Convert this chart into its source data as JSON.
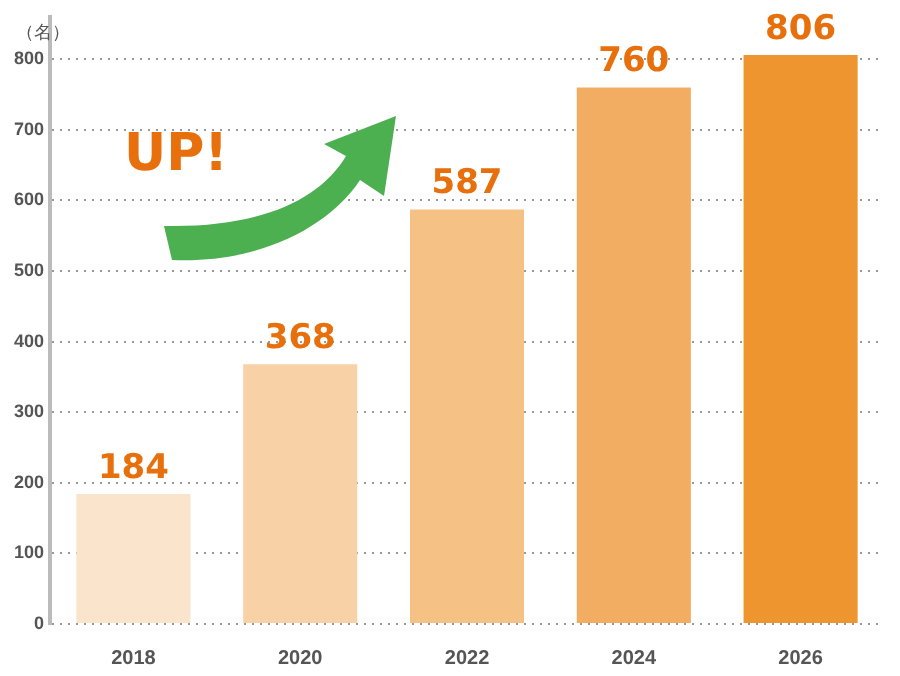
{
  "chart_data": {
    "type": "bar",
    "ylabel": "（名）",
    "categories": [
      "2018",
      "2020",
      "2022",
      "2024",
      "2026"
    ],
    "values": [
      184,
      368,
      587,
      760,
      806
    ],
    "colors": [
      "#fbe4cc",
      "#f8d2a6",
      "#f6c184",
      "#f3ad63",
      "#ef952f"
    ],
    "ylim": [
      0,
      860
    ],
    "yticks": [
      0,
      100,
      200,
      300,
      400,
      500,
      600,
      700,
      800
    ],
    "grid": "y",
    "data_labels": true,
    "annotations": [
      "UP!"
    ]
  }
}
